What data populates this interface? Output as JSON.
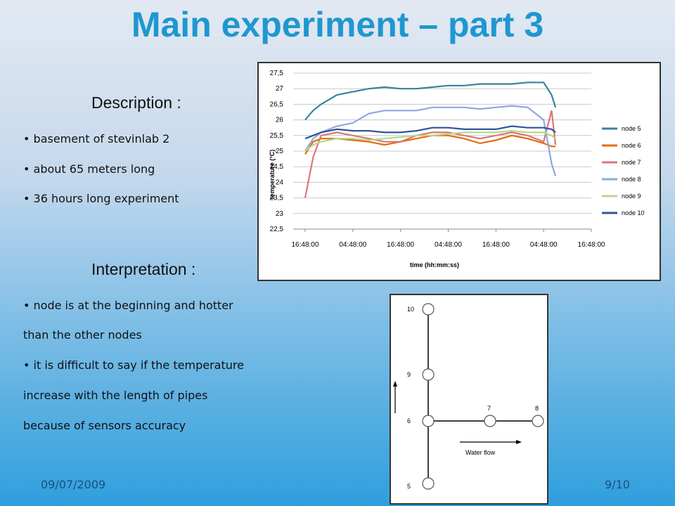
{
  "title": "Main experiment – part 3",
  "description": {
    "heading": "Description :",
    "bullets": [
      "basement of stevinlab 2",
      "about 65 meters long",
      "36 hours long experiment"
    ]
  },
  "interpretation": {
    "heading": "Interpretation :",
    "lines": [
      "• node is at the beginning and hotter",
      "than the other nodes",
      "• it is difficult to say if the temperature",
      "increase with the length of pipes",
      "because of sensors accuracy"
    ]
  },
  "footer": {
    "date": "09/07/2009",
    "page": "9/10"
  },
  "diagram": {
    "nodes": [
      {
        "label": "10"
      },
      {
        "label": "9"
      },
      {
        "label": "6"
      },
      {
        "label": "7"
      },
      {
        "label": "8"
      },
      {
        "label": "5"
      }
    ],
    "flow_label": "Water flow"
  },
  "chart_data": {
    "type": "line",
    "y_label": "temperature (°C)",
    "x_label": "time (hh:mm:ss)",
    "x": [
      0,
      2,
      4,
      8,
      12,
      16,
      20,
      24,
      28,
      32,
      36,
      40,
      44,
      48,
      52,
      56,
      60,
      62,
      63
    ],
    "xlim": [
      -3,
      72
    ],
    "xticks": [
      {
        "value": 0,
        "label": "16:48:00"
      },
      {
        "value": 12,
        "label": "04:48:00"
      },
      {
        "value": 24,
        "label": "16:48:00"
      },
      {
        "value": 36,
        "label": "04:48:00"
      },
      {
        "value": 48,
        "label": "16:48:00"
      },
      {
        "value": 60,
        "label": "04:48:00"
      },
      {
        "value": 72,
        "label": "16:48:00"
      }
    ],
    "ylim": [
      22.5,
      27.5
    ],
    "yticks": [
      {
        "value": 22.5,
        "label": "22,5"
      },
      23,
      {
        "value": 23.5,
        "label": "23,5"
      },
      24,
      {
        "value": 24.5,
        "label": "24,5"
      },
      25,
      {
        "value": 25.5,
        "label": "25,5"
      },
      26,
      {
        "value": 26.5,
        "label": "26,5"
      },
      27,
      {
        "value": 27.5,
        "label": "27,5"
      }
    ],
    "grid": true,
    "legend": "right",
    "series": [
      {
        "name": "node 5",
        "color": "#31859c",
        "values": [
          26.0,
          26.3,
          26.5,
          26.8,
          26.9,
          27.0,
          27.05,
          27.0,
          27.0,
          27.05,
          27.1,
          27.1,
          27.15,
          27.15,
          27.15,
          27.2,
          27.2,
          26.8,
          26.4
        ]
      },
      {
        "name": "node 6",
        "color": "#e46c0a",
        "values": [
          24.9,
          25.3,
          25.4,
          25.4,
          25.35,
          25.3,
          25.2,
          25.3,
          25.4,
          25.5,
          25.5,
          25.4,
          25.25,
          25.35,
          25.5,
          25.4,
          25.25,
          25.15,
          25.15
        ]
      },
      {
        "name": "node 7",
        "color": "#d9777a",
        "values": [
          23.5,
          24.8,
          25.5,
          25.6,
          25.5,
          25.4,
          25.3,
          25.3,
          25.5,
          25.6,
          25.6,
          25.5,
          25.4,
          25.5,
          25.6,
          25.5,
          25.3,
          26.3,
          25.2
        ]
      },
      {
        "name": "node 8",
        "color": "#8ea9db",
        "values": [
          25.0,
          25.4,
          25.6,
          25.8,
          25.9,
          26.2,
          26.3,
          26.3,
          26.3,
          26.4,
          26.4,
          26.4,
          26.35,
          26.4,
          26.45,
          26.4,
          26.0,
          24.6,
          24.2
        ]
      },
      {
        "name": "node 9",
        "color": "#b5d98a",
        "values": [
          25.0,
          25.2,
          25.3,
          25.4,
          25.4,
          25.35,
          25.4,
          25.45,
          25.5,
          25.5,
          25.55,
          25.6,
          25.6,
          25.6,
          25.65,
          25.6,
          25.6,
          25.5,
          25.4
        ]
      },
      {
        "name": "node 10",
        "color": "#2f5597",
        "values": [
          25.4,
          25.5,
          25.6,
          25.7,
          25.65,
          25.65,
          25.6,
          25.6,
          25.65,
          25.75,
          25.75,
          25.7,
          25.7,
          25.7,
          25.8,
          25.75,
          25.75,
          25.7,
          25.6
        ]
      }
    ]
  }
}
